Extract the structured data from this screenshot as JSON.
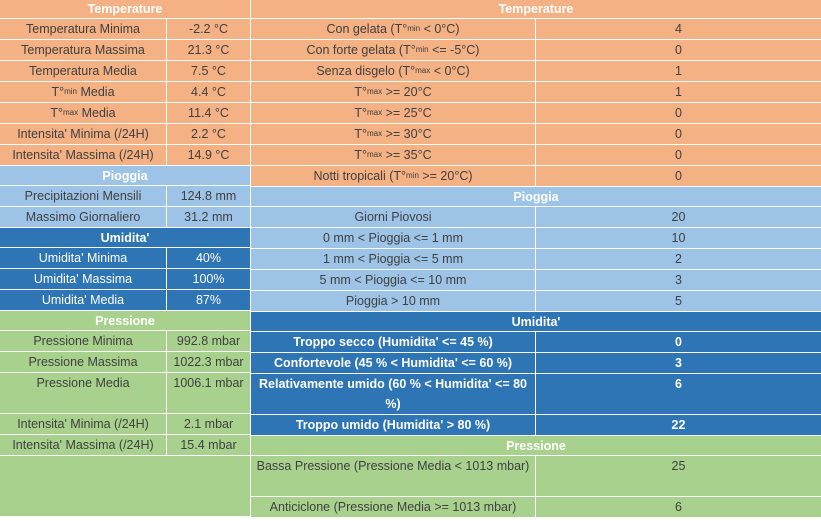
{
  "left": {
    "temperature": {
      "header": "Temperature",
      "rows": [
        {
          "label": "Temperatura Minima",
          "value": "-2.2 °C"
        },
        {
          "label": "Temperatura Massima",
          "value": "21.3 °C"
        },
        {
          "label": "Temperatura Media",
          "value": "7.5 °C"
        },
        {
          "label_pre": "T°",
          "label_sub": "min",
          "label_post": " Media",
          "value": "4.4 °C"
        },
        {
          "label_pre": "T°",
          "label_sub": "max",
          "label_post": " Media",
          "value": "11.4 °C"
        },
        {
          "label": "Intensita' Minima (/24H)",
          "value": "2.2 °C"
        },
        {
          "label": "Intensita' Massima (/24H)",
          "value": "14.9 °C"
        }
      ]
    },
    "pioggia": {
      "header": "Pioggia",
      "rows": [
        {
          "label": "Precipitazioni Mensili",
          "value": "124.8 mm"
        },
        {
          "label": "Massimo Giornaliero",
          "value": "31.2 mm"
        }
      ]
    },
    "umidita": {
      "header": "Umidita'",
      "rows": [
        {
          "label": "Umidita' Minima",
          "value": "40%"
        },
        {
          "label": "Umidita' Massima",
          "value": "100%"
        },
        {
          "label": "Umidita' Media",
          "value": "87%"
        }
      ]
    },
    "pressione": {
      "header": "Pressione",
      "rows": [
        {
          "label": "Pressione Minima",
          "value": "992.8 mbar"
        },
        {
          "label": "Pressione Massima",
          "value": "1022.3 mbar"
        },
        {
          "label": "Pressione Media",
          "value": "1006.1 mbar"
        },
        {
          "label": "Intensita' Minima (/24H)",
          "value": "2.1 mbar"
        },
        {
          "label": "Intensita' Massima (/24H)",
          "value": "15.4 mbar"
        }
      ]
    }
  },
  "right": {
    "temperature": {
      "header": "Temperature",
      "rows": [
        {
          "label_pre": "Con gelata (T°",
          "label_sub": "min",
          "label_post": " < 0°C)",
          "value": "4"
        },
        {
          "label_pre": "Con forte gelata (T°",
          "label_sub": "min",
          "label_post": " <= -5°C)",
          "value": "0"
        },
        {
          "label_pre": "Senza disgelo (T°",
          "label_sub": "max",
          "label_post": " < 0°C)",
          "value": "1"
        },
        {
          "label_pre": "T°",
          "label_sub": "max",
          "label_post": " >= 20°C",
          "value": "1"
        },
        {
          "label_pre": "T°",
          "label_sub": "max",
          "label_post": " >= 25°C",
          "value": "0"
        },
        {
          "label_pre": "T°",
          "label_sub": "max",
          "label_post": " >= 30°C",
          "value": "0"
        },
        {
          "label_pre": "T°",
          "label_sub": "max",
          "label_post": " >= 35°C",
          "value": "0"
        },
        {
          "label_pre": "Notti tropicali (T°",
          "label_sub": "min",
          "label_post": " >= 20°C)",
          "value": "0"
        }
      ]
    },
    "pioggia": {
      "header": "Pioggia",
      "rows": [
        {
          "label": "Giorni Piovosi",
          "value": "20"
        },
        {
          "label": "0 mm < Pioggia <= 1 mm",
          "value": "10"
        },
        {
          "label": "1 mm < Pioggia <= 5 mm",
          "value": "2"
        },
        {
          "label": "5 mm < Pioggia <= 10 mm",
          "value": "3"
        },
        {
          "label": "Pioggia > 10 mm",
          "value": "5"
        }
      ]
    },
    "umidita": {
      "header": "Umidita'",
      "rows": [
        {
          "label": "Troppo secco (Humidita' <= 45 %)",
          "value": "0"
        },
        {
          "label": "Confortevole (45 % < Humidita' <= 60 %)",
          "value": "3"
        },
        {
          "label": "Relativamente umido (60 % < Humidita' <= 80 %)",
          "value": "6"
        },
        {
          "label": "Troppo umido (Humidita' > 80 %)",
          "value": "22"
        }
      ]
    },
    "pressione": {
      "header": "Pressione",
      "rows": [
        {
          "label": "Bassa Pressione (Pressione Media < 1013 mbar)",
          "value": "25"
        },
        {
          "label": "Anticiclone (Pressione Media >= 1013 mbar)",
          "value": "6"
        }
      ]
    }
  }
}
